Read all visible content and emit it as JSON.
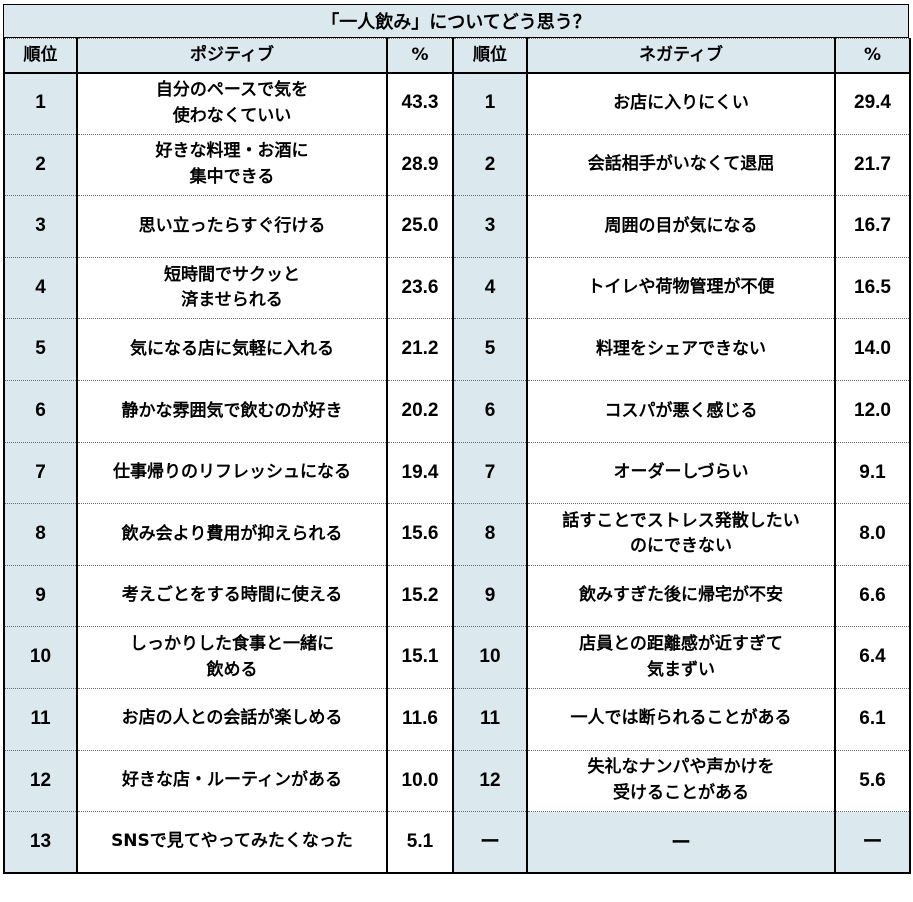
{
  "title": "「一人飲み」についてどう思う？",
  "headers": {
    "rank_left": "順位",
    "positive": "ポジティブ",
    "pct_left": "%",
    "rank_right": "順位",
    "negative": "ネガティブ",
    "pct_right": "%"
  },
  "rows": [
    {
      "rank_l": "1",
      "pos": [
        "自分のペースで気を",
        "使わなくていい"
      ],
      "pct_l": "43.3",
      "rank_r": "1",
      "neg": [
        "お店に入りにくい"
      ],
      "pct_r": "29.4"
    },
    {
      "rank_l": "2",
      "pos": [
        "好きな料理・お酒に",
        "集中できる"
      ],
      "pct_l": "28.9",
      "rank_r": "2",
      "neg": [
        "会話相手がいなくて退屈"
      ],
      "pct_r": "21.7"
    },
    {
      "rank_l": "3",
      "pos": [
        "思い立ったらすぐ行ける"
      ],
      "pct_l": "25.0",
      "rank_r": "3",
      "neg": [
        "周囲の目が気になる"
      ],
      "pct_r": "16.7"
    },
    {
      "rank_l": "4",
      "pos": [
        "短時間でサクッと",
        "済ませられる"
      ],
      "pct_l": "23.6",
      "rank_r": "4",
      "neg": [
        "トイレや荷物管理が不便"
      ],
      "pct_r": "16.5"
    },
    {
      "rank_l": "5",
      "pos": [
        "気になる店に気軽に入れる"
      ],
      "pct_l": "21.2",
      "rank_r": "5",
      "neg": [
        "料理をシェアできない"
      ],
      "pct_r": "14.0"
    },
    {
      "rank_l": "6",
      "pos": [
        "静かな雰囲気で飲むのが好き"
      ],
      "pct_l": "20.2",
      "rank_r": "6",
      "neg": [
        "コスパが悪く感じる"
      ],
      "pct_r": "12.0"
    },
    {
      "rank_l": "7",
      "pos": [
        "仕事帰りのリフレッシュになる"
      ],
      "pct_l": "19.4",
      "rank_r": "7",
      "neg": [
        "オーダーしづらい"
      ],
      "pct_r": "9.1"
    },
    {
      "rank_l": "8",
      "pos": [
        "飲み会より費用が抑えられる"
      ],
      "pct_l": "15.6",
      "rank_r": "8",
      "neg": [
        "話すことでストレス発散したい",
        "のにできない"
      ],
      "pct_r": "8.0"
    },
    {
      "rank_l": "9",
      "pos": [
        "考えごとをする時間に使える"
      ],
      "pct_l": "15.2",
      "rank_r": "9",
      "neg": [
        "飲みすぎた後に帰宅が不安"
      ],
      "pct_r": "6.6"
    },
    {
      "rank_l": "10",
      "pos": [
        "しっかりした食事と一緒に",
        "飲める"
      ],
      "pct_l": "15.1",
      "rank_r": "10",
      "neg": [
        "店員との距離感が近すぎて",
        "気まずい"
      ],
      "pct_r": "6.4"
    },
    {
      "rank_l": "11",
      "pos": [
        "お店の人との会話が楽しめる"
      ],
      "pct_l": "11.6",
      "rank_r": "11",
      "neg": [
        "一人では断られることがある"
      ],
      "pct_r": "6.1"
    },
    {
      "rank_l": "12",
      "pos": [
        "好きな店・ルーティンがある"
      ],
      "pct_l": "10.0",
      "rank_r": "12",
      "neg": [
        "失礼なナンパや声かけを",
        "受けることがある"
      ],
      "pct_r": "5.6"
    },
    {
      "rank_l": "13",
      "pos": [
        "SNSで見てやってみたくなった"
      ],
      "pct_l": "5.1",
      "rank_r": "ー",
      "neg": [
        "ー"
      ],
      "pct_r": "ー"
    }
  ],
  "colors": {
    "header_fill": "#dbe9ef",
    "border": "#000000",
    "row_divider": "#6a6a6a"
  },
  "chart_data": {
    "type": "table",
    "title": "「一人飲み」についてどう思う？",
    "columns": [
      "順位",
      "ポジティブ",
      "%",
      "順位",
      "ネガティブ",
      "%"
    ],
    "positive": {
      "items": [
        "自分のペースで気を使わなくていい",
        "好きな料理・お酒に集中できる",
        "思い立ったらすぐ行ける",
        "短時間でサクッと済ませられる",
        "気になる店に気軽に入れる",
        "静かな雰囲気で飲むのが好き",
        "仕事帰りのリフレッシュになる",
        "飲み会より費用が抑えられる",
        "考えごとをする時間に使える",
        "しっかりした食事と一緒に飲める",
        "お店の人との会話が楽しめる",
        "好きな店・ルーティンがある",
        "SNSで見てやってみたくなった"
      ],
      "values": [
        43.3,
        28.9,
        25.0,
        23.6,
        21.2,
        20.2,
        19.4,
        15.6,
        15.2,
        15.1,
        11.6,
        10.0,
        5.1
      ]
    },
    "negative": {
      "items": [
        "お店に入りにくい",
        "会話相手がいなくて退屈",
        "周囲の目が気になる",
        "トイレや荷物管理が不便",
        "料理をシェアできない",
        "コスパが悪く感じる",
        "オーダーしづらい",
        "話すことでストレス発散したいのにできない",
        "飲みすぎた後に帰宅が不安",
        "店員との距離感が近すぎて気まずい",
        "一人では断られることがある",
        "失礼なナンパや声かけを受けることがある"
      ],
      "values": [
        29.4,
        21.7,
        16.7,
        16.5,
        14.0,
        12.0,
        9.1,
        8.0,
        6.6,
        6.4,
        6.1,
        5.6
      ]
    }
  }
}
